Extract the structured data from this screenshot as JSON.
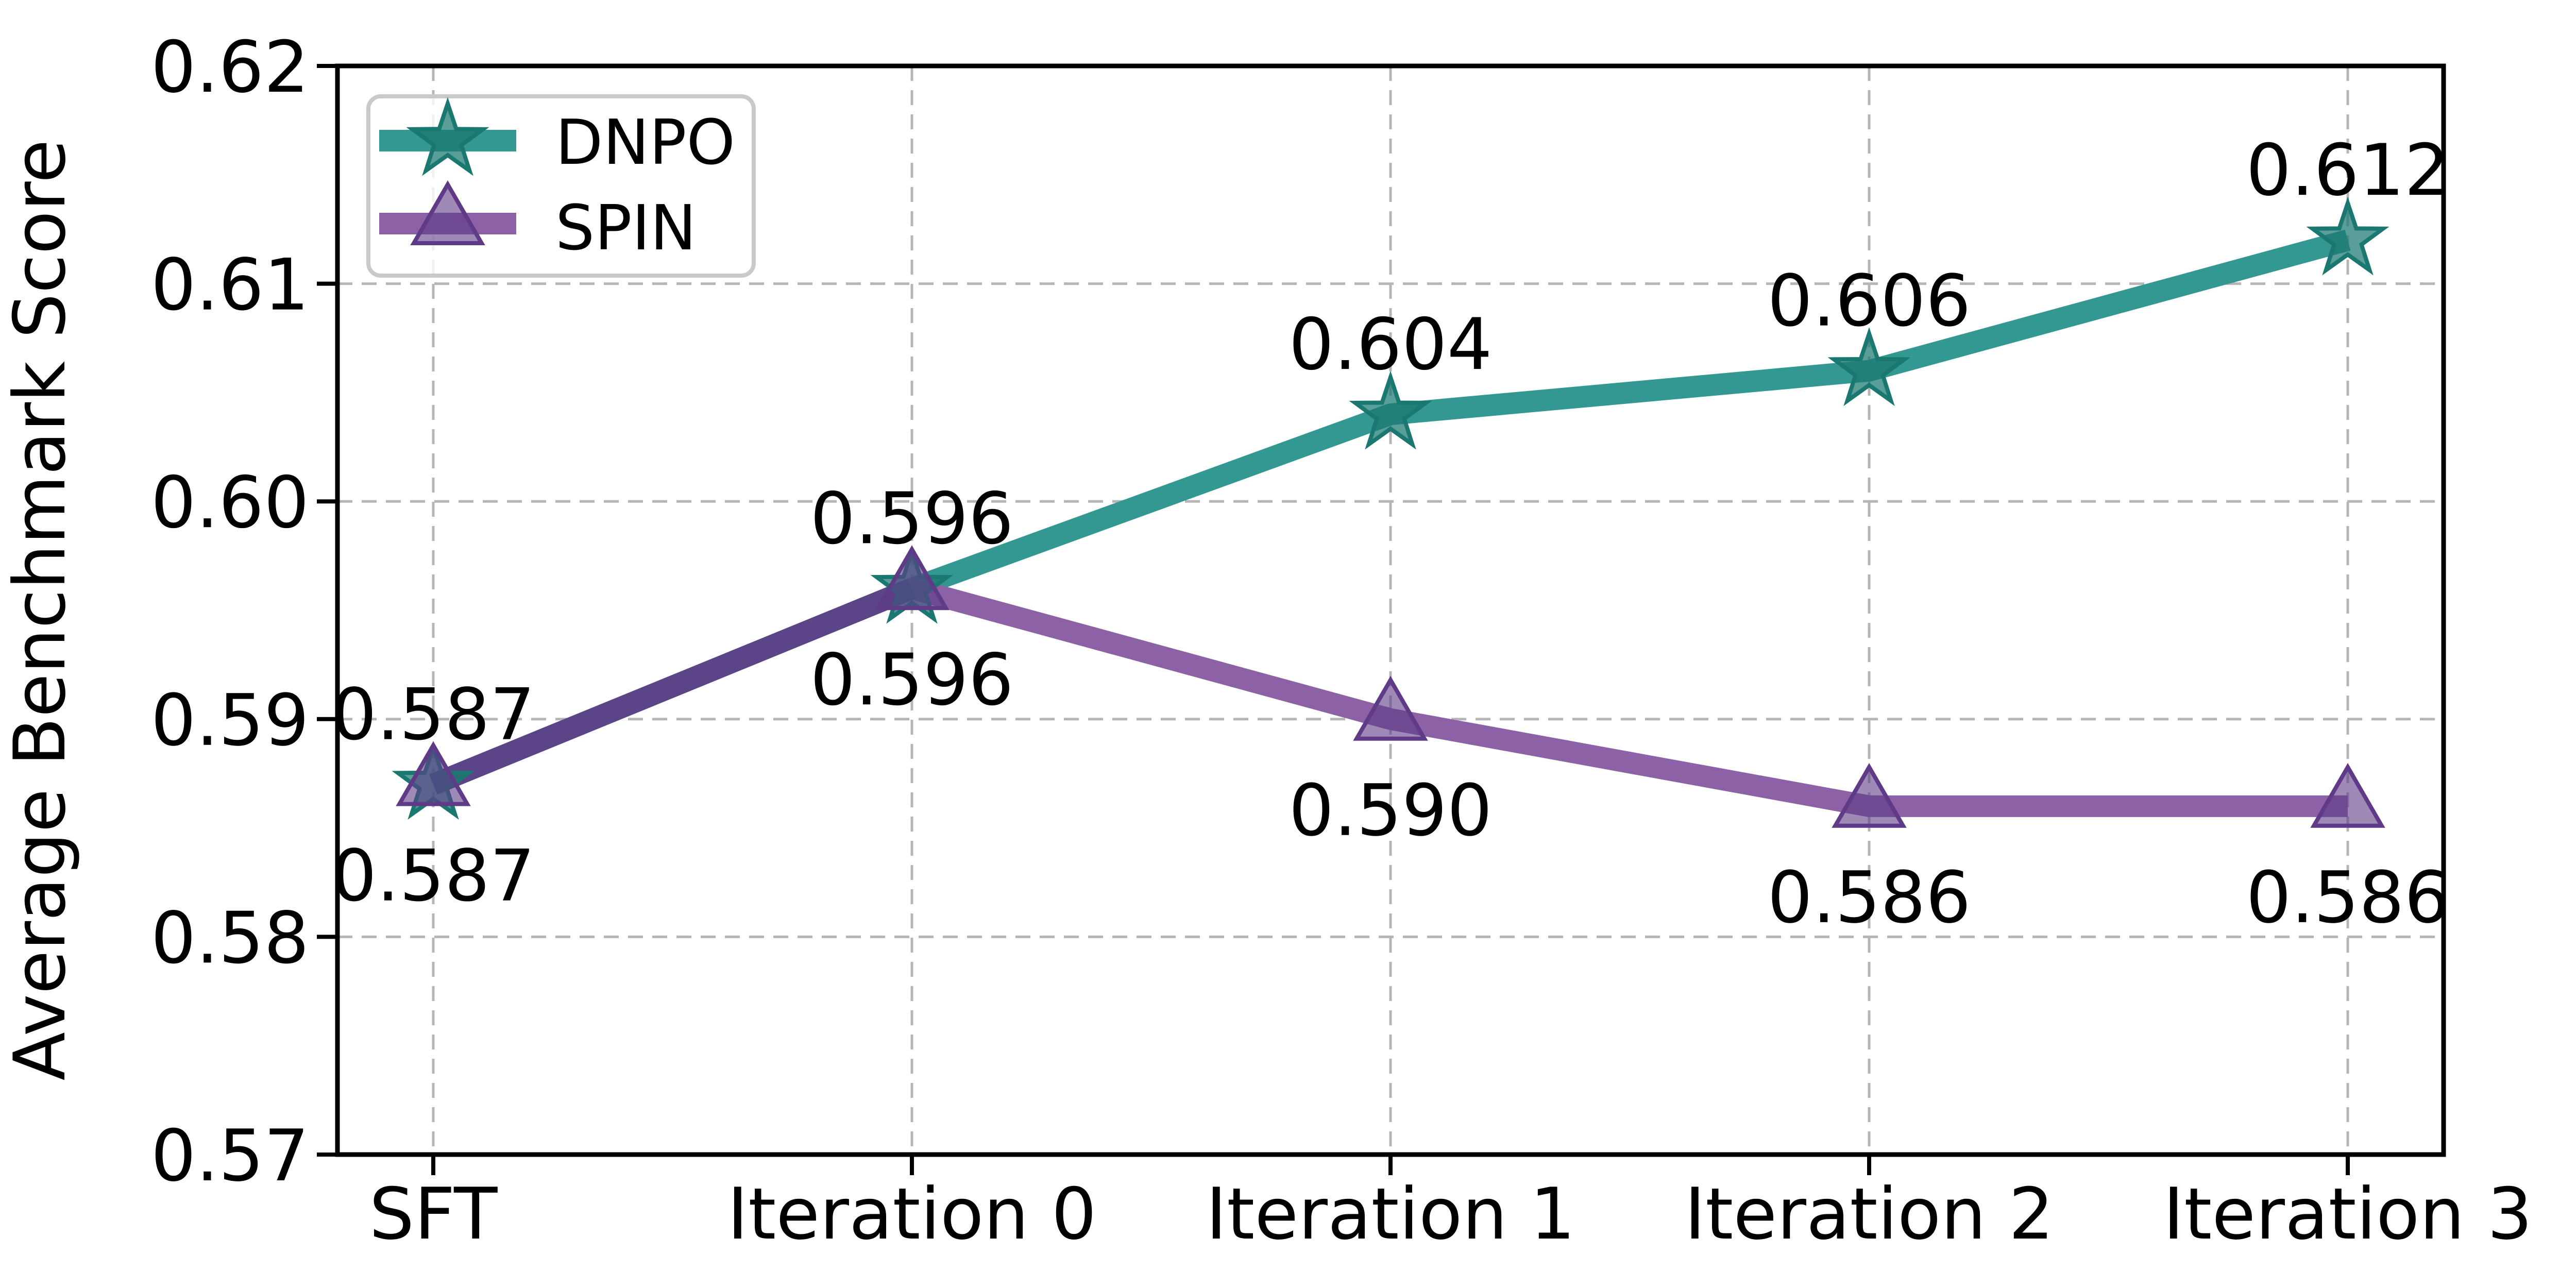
{
  "chart_data": {
    "type": "line",
    "title": "",
    "xlabel": "",
    "ylabel": "Average Benchmark Score",
    "categories": [
      "SFT",
      "Iteration 0",
      "Iteration 1",
      "Iteration 2",
      "Iteration 3"
    ],
    "ylim": [
      0.57,
      0.62
    ],
    "yticks": [
      {
        "label": "0.57",
        "value": 0.57
      },
      {
        "label": "0.58",
        "value": 0.58
      },
      {
        "label": "0.59",
        "value": 0.59
      },
      {
        "label": "0.60",
        "value": 0.6
      },
      {
        "label": "0.61",
        "value": 0.61
      },
      {
        "label": "0.62",
        "value": 0.62
      }
    ],
    "grid": true,
    "grid_style": "dashed",
    "legend_position": "upper-left",
    "series": [
      {
        "name": "DNPO",
        "marker": "star",
        "color": "#339891",
        "edge_color": "#1A7871",
        "values": [
          0.587,
          0.596,
          0.604,
          0.606,
          0.612
        ],
        "point_labels": [
          "0.587",
          "0.596",
          "0.604",
          "0.606",
          "0.612"
        ],
        "label_side": "above"
      },
      {
        "name": "SPIN",
        "marker": "triangle",
        "color": "#8D61A6",
        "edge_color": "#5E3A87",
        "values": [
          0.587,
          0.596,
          0.59,
          0.586,
          0.586
        ],
        "point_labels": [
          "0.587",
          "0.596",
          "0.590",
          "0.586",
          "0.586"
        ],
        "label_side": "below"
      }
    ],
    "colors": {
      "overlap_segment": "#5B4488",
      "grid": "#B5B5B5",
      "spine": "#000000",
      "text": "#000000",
      "legend_border": "#C9C9C9",
      "legend_fill": "#FFFFFF"
    }
  }
}
